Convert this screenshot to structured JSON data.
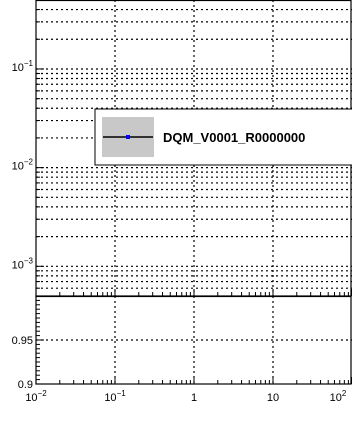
{
  "chart_data": [
    {
      "type": "line",
      "panel": "top",
      "x_scale": "log",
      "y_scale": "log",
      "xlim": [
        0.01,
        100
      ],
      "ylim": [
        0.0005,
        0.5
      ],
      "grid": true,
      "legend_position": "right",
      "y_ticks": [
        {
          "value": 0.1,
          "base": "10",
          "exp": "−1"
        },
        {
          "value": 0.01,
          "base": "10",
          "exp": "−2"
        },
        {
          "value": 0.001,
          "base": "10",
          "exp": "−3"
        }
      ],
      "series": [
        {
          "name": "DQM_V0001_R0000000",
          "color": "#0000ff",
          "line_color": "#000000",
          "x": [],
          "y": []
        }
      ]
    },
    {
      "type": "line",
      "panel": "bottom",
      "x_scale": "log",
      "y_scale": "linear",
      "xlim": [
        0.01,
        100
      ],
      "ylim": [
        0.9,
        1.0
      ],
      "grid": true,
      "y_ticks": [
        {
          "value": 0.95,
          "label": "0.95"
        },
        {
          "value": 0.9,
          "label": "0.9"
        }
      ],
      "x_ticks": [
        {
          "value": 0.01,
          "base": "10",
          "exp": "−2",
          "label": ""
        },
        {
          "value": 0.1,
          "base": "10",
          "exp": "−1",
          "label": ""
        },
        {
          "value": 1,
          "base": "",
          "exp": "",
          "label": "1"
        },
        {
          "value": 10,
          "base": "",
          "exp": "",
          "label": "10"
        },
        {
          "value": 100,
          "base": "10",
          "exp": "2",
          "label": ""
        }
      ],
      "series": []
    }
  ]
}
